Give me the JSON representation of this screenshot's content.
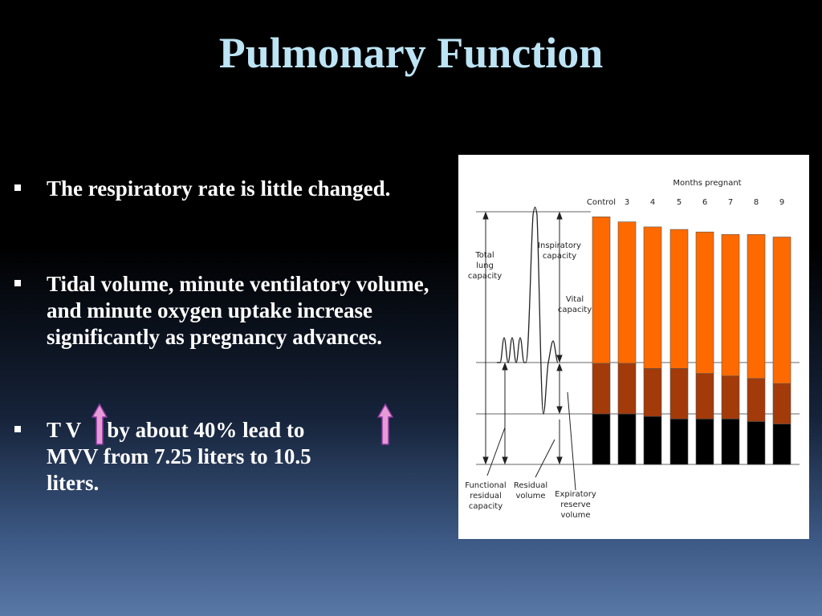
{
  "title": "Pulmonary Function",
  "bullets": [
    {
      "text": "The respiratory rate is little changed."
    },
    {
      "text": "Tidal volume, minute ventilatory volume, and minute oxygen uptake increase significantly as pregnancy advances."
    },
    {
      "line1_prefix": "T V",
      "line1_mid": "by about 40% lead to",
      "line2": "MVV from 7.25 liters to 10.5",
      "line3": "liters.",
      "arrow_icon": "up-arrow-icon",
      "arrow_color": "#e89ad8"
    }
  ],
  "figure": {
    "header": "Months pregnant",
    "columns": [
      "Control",
      "3",
      "4",
      "5",
      "6",
      "7",
      "8",
      "9"
    ],
    "labels": {
      "total_lung_capacity": [
        "Total",
        "lung",
        "capacity"
      ],
      "inspiratory_capacity": [
        "Inspiratory",
        "capacity"
      ],
      "vital_capacity": [
        "Vital",
        "capacity"
      ],
      "functional_residual_capacity": [
        "Functional",
        "residual",
        "capacity"
      ],
      "residual_volume": [
        "Residual",
        "volume"
      ],
      "expiratory_reserve_volume": [
        "Expiratory",
        "reserve",
        "volume"
      ]
    },
    "colors": {
      "inspiratory": "#ff6a00",
      "expiratory_reserve": "#a33a0a",
      "residual": "#000000"
    },
    "chart_data": {
      "type": "bar",
      "stacked": true,
      "categories": [
        "Control",
        "3",
        "4",
        "5",
        "6",
        "7",
        "8",
        "9"
      ],
      "series": [
        {
          "name": "Residual volume",
          "values": [
            0.2,
            0.2,
            0.19,
            0.18,
            0.18,
            0.18,
            0.17,
            0.16
          ]
        },
        {
          "name": "Expiratory reserve volume",
          "values": [
            0.2,
            0.2,
            0.19,
            0.2,
            0.18,
            0.17,
            0.17,
            0.16
          ]
        },
        {
          "name": "Inspiratory capacity",
          "values": [
            0.58,
            0.56,
            0.56,
            0.55,
            0.56,
            0.56,
            0.57,
            0.58
          ]
        }
      ]
    }
  }
}
